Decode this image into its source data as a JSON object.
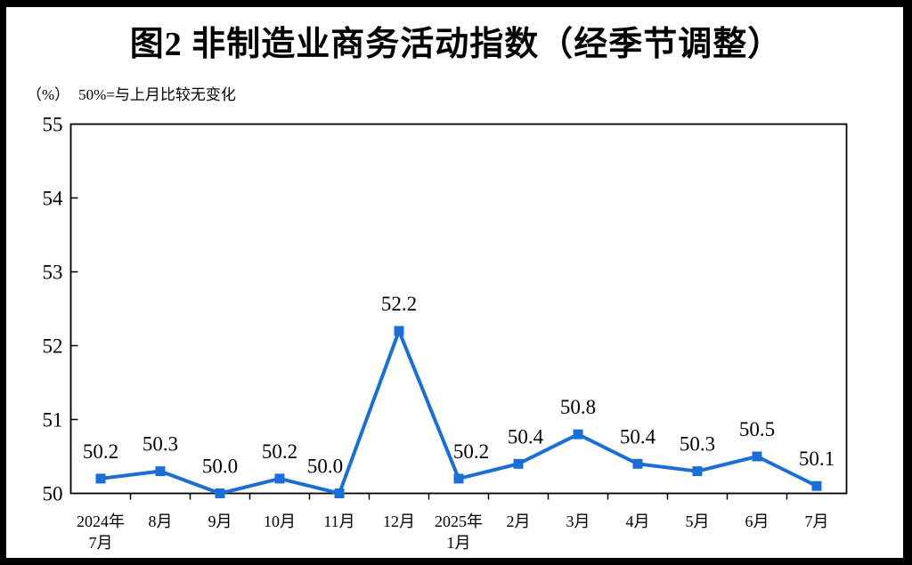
{
  "title": "图2 非制造业商务活动指数（经季节调整）",
  "subtitle": {
    "unit_label": "（%）",
    "baseline_note": "50%=与上月比较无变化"
  },
  "chart_data": {
    "type": "line",
    "title": "图2 非制造业商务活动指数（经季节调整）",
    "ylabel": "（%）",
    "categories": [
      [
        "2024年",
        "7月"
      ],
      [
        "8月"
      ],
      [
        "9月"
      ],
      [
        "10月"
      ],
      [
        "11月"
      ],
      [
        "12月"
      ],
      [
        "2025年",
        "1月"
      ],
      [
        "2月"
      ],
      [
        "3月"
      ],
      [
        "4月"
      ],
      [
        "5月"
      ],
      [
        "6月"
      ],
      [
        "7月"
      ]
    ],
    "values": [
      50.2,
      50.3,
      50.0,
      50.2,
      50.0,
      52.2,
      50.2,
      50.4,
      50.8,
      50.4,
      50.3,
      50.5,
      50.1
    ],
    "data_labels": [
      "50.2",
      "50.3",
      "50.0",
      "50.2",
      "50.0",
      "52.2",
      "50.2",
      "50.4",
      "50.8",
      "50.4",
      "50.3",
      "50.5",
      "50.1"
    ],
    "label_dx": [
      0,
      0,
      0,
      0,
      -16,
      0,
      14,
      8,
      0,
      0,
      0,
      0,
      0
    ],
    "ylim": [
      50,
      55
    ],
    "y_ticks": [
      50,
      51,
      52,
      53,
      54,
      55
    ],
    "grid": false,
    "legend": "none",
    "line_color": "#1b6ed4",
    "marker": "square",
    "axis_color": "#000000"
  }
}
